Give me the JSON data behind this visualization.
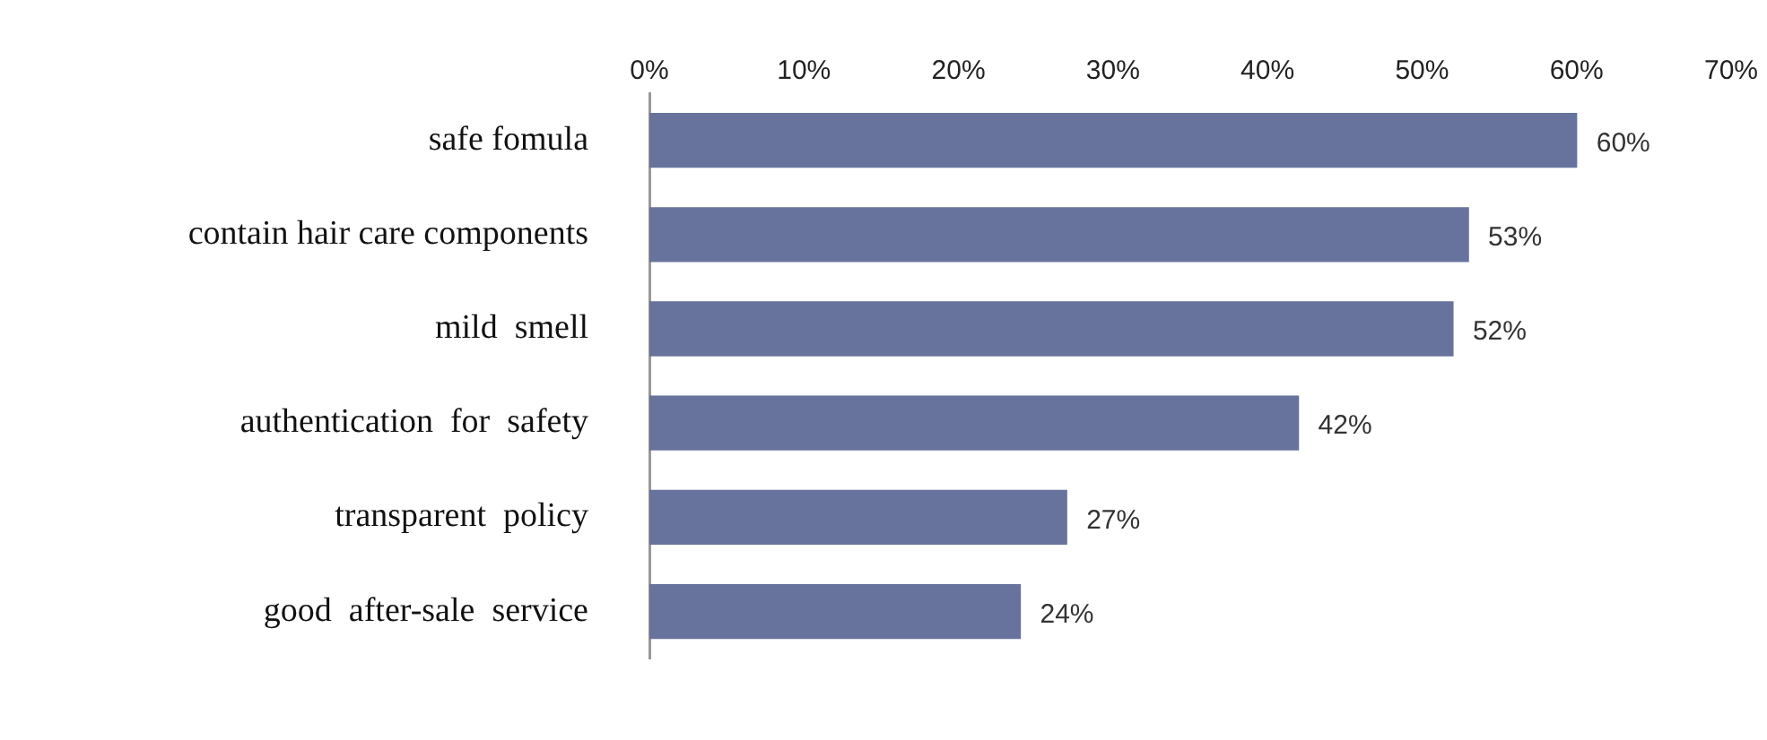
{
  "chart_data": {
    "type": "bar",
    "orientation": "horizontal",
    "categories": [
      "safe fomula",
      "contain hair care components",
      "mild  smell",
      "authentication  for  safety",
      "transparent  policy",
      "good  after-sale  service"
    ],
    "values": [
      60,
      53,
      52,
      42,
      27,
      24
    ],
    "value_labels": [
      "60%",
      "53%",
      "52%",
      "42%",
      "27%",
      "24%"
    ],
    "color": "#67739c",
    "xlim": [
      0,
      70
    ],
    "xticks": [
      {
        "value": 0,
        "label": "0%"
      },
      {
        "value": 10,
        "label": "10%"
      },
      {
        "value": 20,
        "label": "20%"
      },
      {
        "value": 30,
        "label": "30%"
      },
      {
        "value": 40,
        "label": "40%"
      },
      {
        "value": 50,
        "label": "50%"
      },
      {
        "value": 60,
        "label": "60%"
      },
      {
        "value": 70,
        "label": "70%"
      }
    ],
    "grid": false,
    "legend": false
  }
}
